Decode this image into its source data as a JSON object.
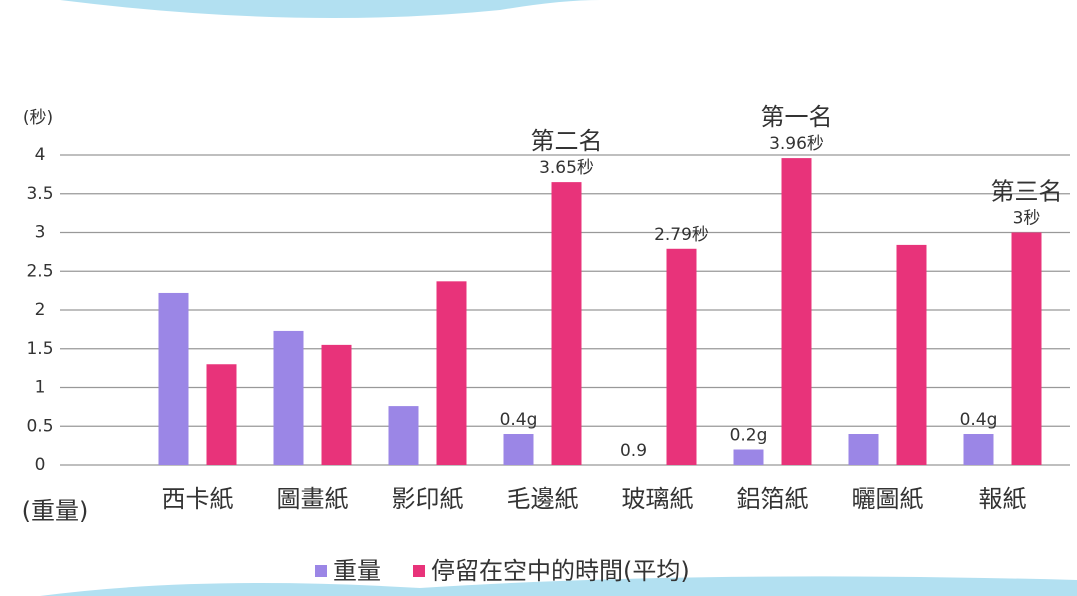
{
  "chart_data": {
    "type": "bar",
    "y_label": "(秒)",
    "x_label": "(重量)",
    "categories": [
      "西卡紙",
      "圖畫紙",
      "影印紙",
      "毛邊紙",
      "玻璃紙",
      "鋁箔紙",
      "曬圖紙",
      "報紙"
    ],
    "series": [
      {
        "name": "重量",
        "color": "#9b86e6",
        "values": [
          2.22,
          1.73,
          0.76,
          0.4,
          null,
          0.2,
          0.4,
          0.4
        ],
        "value_labels": [
          null,
          null,
          null,
          "0.4g",
          "0.9",
          "0.2g",
          null,
          "0.4g"
        ]
      },
      {
        "name": "停留在空中的時間(平均)",
        "color": "#e8337a",
        "values": [
          1.3,
          1.55,
          2.37,
          3.65,
          2.79,
          3.96,
          2.84,
          3
        ],
        "value_labels": [
          null,
          null,
          null,
          "3.65秒",
          "2.79秒",
          "3.96秒",
          null,
          "3秒"
        ]
      }
    ],
    "rank_labels": [
      null,
      null,
      null,
      "第二名",
      null,
      "第一名",
      null,
      "第三名"
    ],
    "ylim": [
      0,
      4
    ],
    "yticks": [
      0,
      0.5,
      1,
      1.5,
      2,
      2.5,
      3,
      3.5,
      4
    ],
    "grid": true
  }
}
